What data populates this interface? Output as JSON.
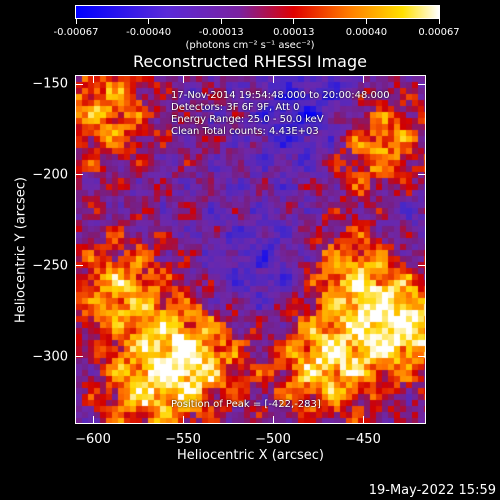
{
  "colorbar": {
    "ticks": [
      "-0.00067",
      "-0.00040",
      "-0.00013",
      "0.00013",
      "0.00040",
      "0.00067"
    ],
    "unit_label": "(photons cm⁻² s⁻¹ asec⁻²)"
  },
  "info": {
    "time_range": "17-Nov-2014 19:54:48.000 to 20:00:48.000",
    "detectors": "Detectors: 3F 6F 9F, Att 0",
    "energy": "Energy Range: 25.0 - 50.0 keV",
    "clean": "Clean     Total counts: 4.43E+03",
    "peak": "Position of Peak = [-422,-283]"
  },
  "chart_data": {
    "type": "heatmap",
    "title": "Reconstructed RHESSI Image",
    "xlabel": "Heliocentric X (arcsec)",
    "ylabel": "Heliocentric Y (arcsec)",
    "xlim": [
      -610,
      -415
    ],
    "ylim": [
      -337,
      -145
    ],
    "x_ticks": [
      -600,
      -550,
      -500,
      -450
    ],
    "y_ticks": [
      -150,
      -200,
      -250,
      -300
    ],
    "x_tick_labels": [
      "−600",
      "−550",
      "−500",
      "−450"
    ],
    "y_tick_labels": [
      "−150",
      "−200",
      "−250",
      "−300"
    ],
    "value_range": [
      -0.00067,
      0.00067
    ],
    "colormap": "blue-purple-red-yellow-white",
    "peak_position": [
      -422,
      -283
    ],
    "bright_regions": [
      {
        "x": -545,
        "y": -300,
        "level": 0.95
      },
      {
        "x": -585,
        "y": -265,
        "level": 0.8
      },
      {
        "x": -470,
        "y": -305,
        "level": 0.95
      },
      {
        "x": -455,
        "y": -255,
        "level": 0.85
      },
      {
        "x": -425,
        "y": -285,
        "level": 1.0
      },
      {
        "x": -440,
        "y": -185,
        "level": 0.8
      },
      {
        "x": -595,
        "y": -165,
        "level": 0.75
      },
      {
        "x": -570,
        "y": -320,
        "level": 0.7
      }
    ],
    "dark_regions": [
      {
        "x": -480,
        "y": -165,
        "level": -0.6
      },
      {
        "x": -505,
        "y": -250,
        "level": -0.4
      },
      {
        "x": -420,
        "y": -225,
        "level": -0.3
      }
    ]
  },
  "timestamp": "19-May-2022 15:59"
}
